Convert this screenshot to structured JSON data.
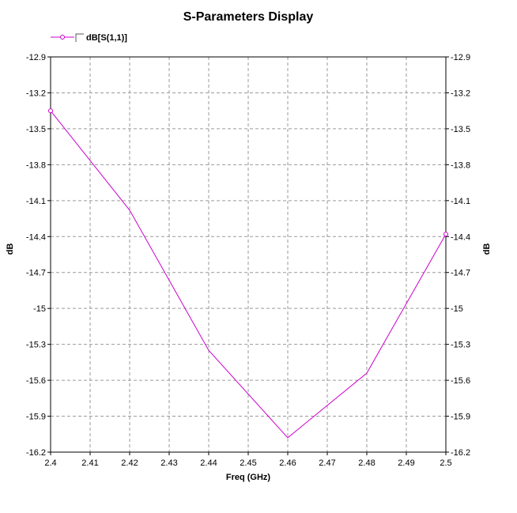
{
  "chart_data": {
    "type": "line",
    "title": "S-Parameters Display",
    "xlabel": "Freq (GHz)",
    "ylabel": "dB",
    "ylabel_right": "dB",
    "xlim": [
      2.4,
      2.5
    ],
    "ylim": [
      -16.2,
      -12.9
    ],
    "x_ticks": [
      "2.4",
      "2.41",
      "2.42",
      "2.43",
      "2.44",
      "2.45",
      "2.46",
      "2.47",
      "2.48",
      "2.49",
      "2.5"
    ],
    "y_ticks": [
      "-12.9",
      "-13.2",
      "-13.5",
      "-13.8",
      "-14.1",
      "-14.4",
      "-14.7",
      "-15",
      "-15.3",
      "-15.6",
      "-15.9",
      "-16.2"
    ],
    "grid": true,
    "legend_position": "top-left",
    "series": [
      {
        "name": "dB[S(1,1)]",
        "color": "#cc00cc",
        "x": [
          2.4,
          2.42,
          2.44,
          2.46,
          2.48,
          2.5
        ],
        "values": [
          -13.35,
          -14.18,
          -15.35,
          -16.08,
          -15.54,
          -14.38
        ]
      }
    ]
  }
}
